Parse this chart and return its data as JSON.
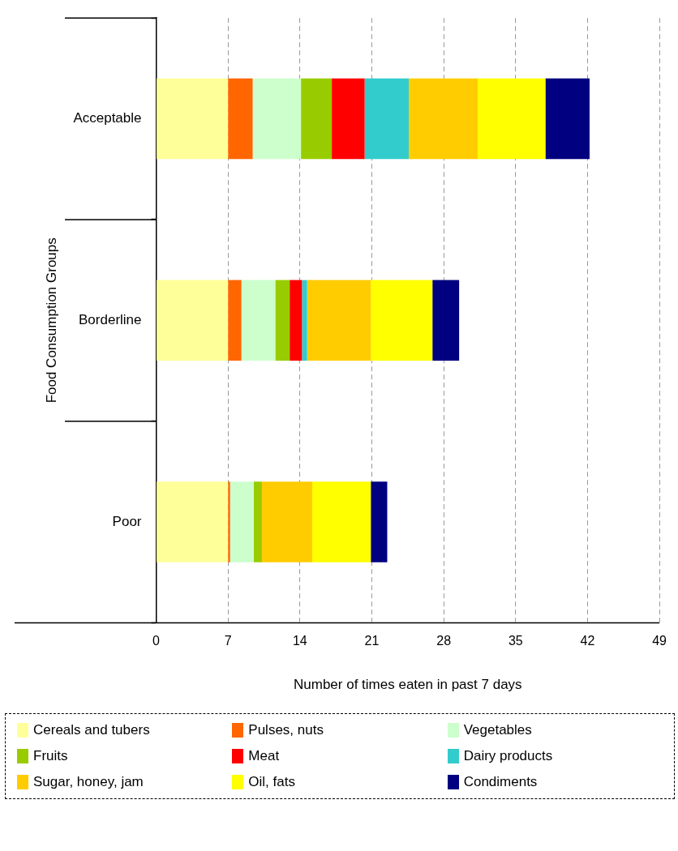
{
  "chart_data": {
    "type": "bar",
    "orientation": "horizontal",
    "stacked": true,
    "xlabel": "Number of times eaten in past 7 days",
    "ylabel": "Food Consumption Groups",
    "categories": [
      "Acceptable",
      "Borderline",
      "Poor"
    ],
    "series": [
      {
        "name": "Cereals and tubers",
        "color": "#ffff99",
        "values": [
          7,
          7,
          7
        ]
      },
      {
        "name": "Pulses, nuts",
        "color": "#ff6600",
        "values": [
          2.4,
          1.3,
          0.2
        ]
      },
      {
        "name": "Vegetables",
        "color": "#ccffcc",
        "values": [
          4.7,
          3.3,
          2.3
        ]
      },
      {
        "name": "Fruits",
        "color": "#99cc00",
        "values": [
          3.0,
          1.4,
          0.8
        ]
      },
      {
        "name": "Meat",
        "color": "#ff0000",
        "values": [
          3.2,
          1.2,
          0
        ]
      },
      {
        "name": "Dairy products",
        "color": "#33cccc",
        "values": [
          4.3,
          0.5,
          0
        ]
      },
      {
        "name": "Sugar, honey, jam",
        "color": "#ffcc00",
        "values": [
          6.7,
          6.2,
          4.9
        ]
      },
      {
        "name": "Oil, fats",
        "color": "#ffff00",
        "values": [
          6.6,
          6.0,
          5.7
        ]
      },
      {
        "name": "Condiments",
        "color": "#000080",
        "values": [
          4.3,
          2.6,
          1.6
        ]
      }
    ],
    "xlim": [
      0,
      49
    ],
    "xticks": [
      0,
      7,
      14,
      21,
      28,
      35,
      42,
      49
    ],
    "grid": "x",
    "legend": "bottom"
  }
}
